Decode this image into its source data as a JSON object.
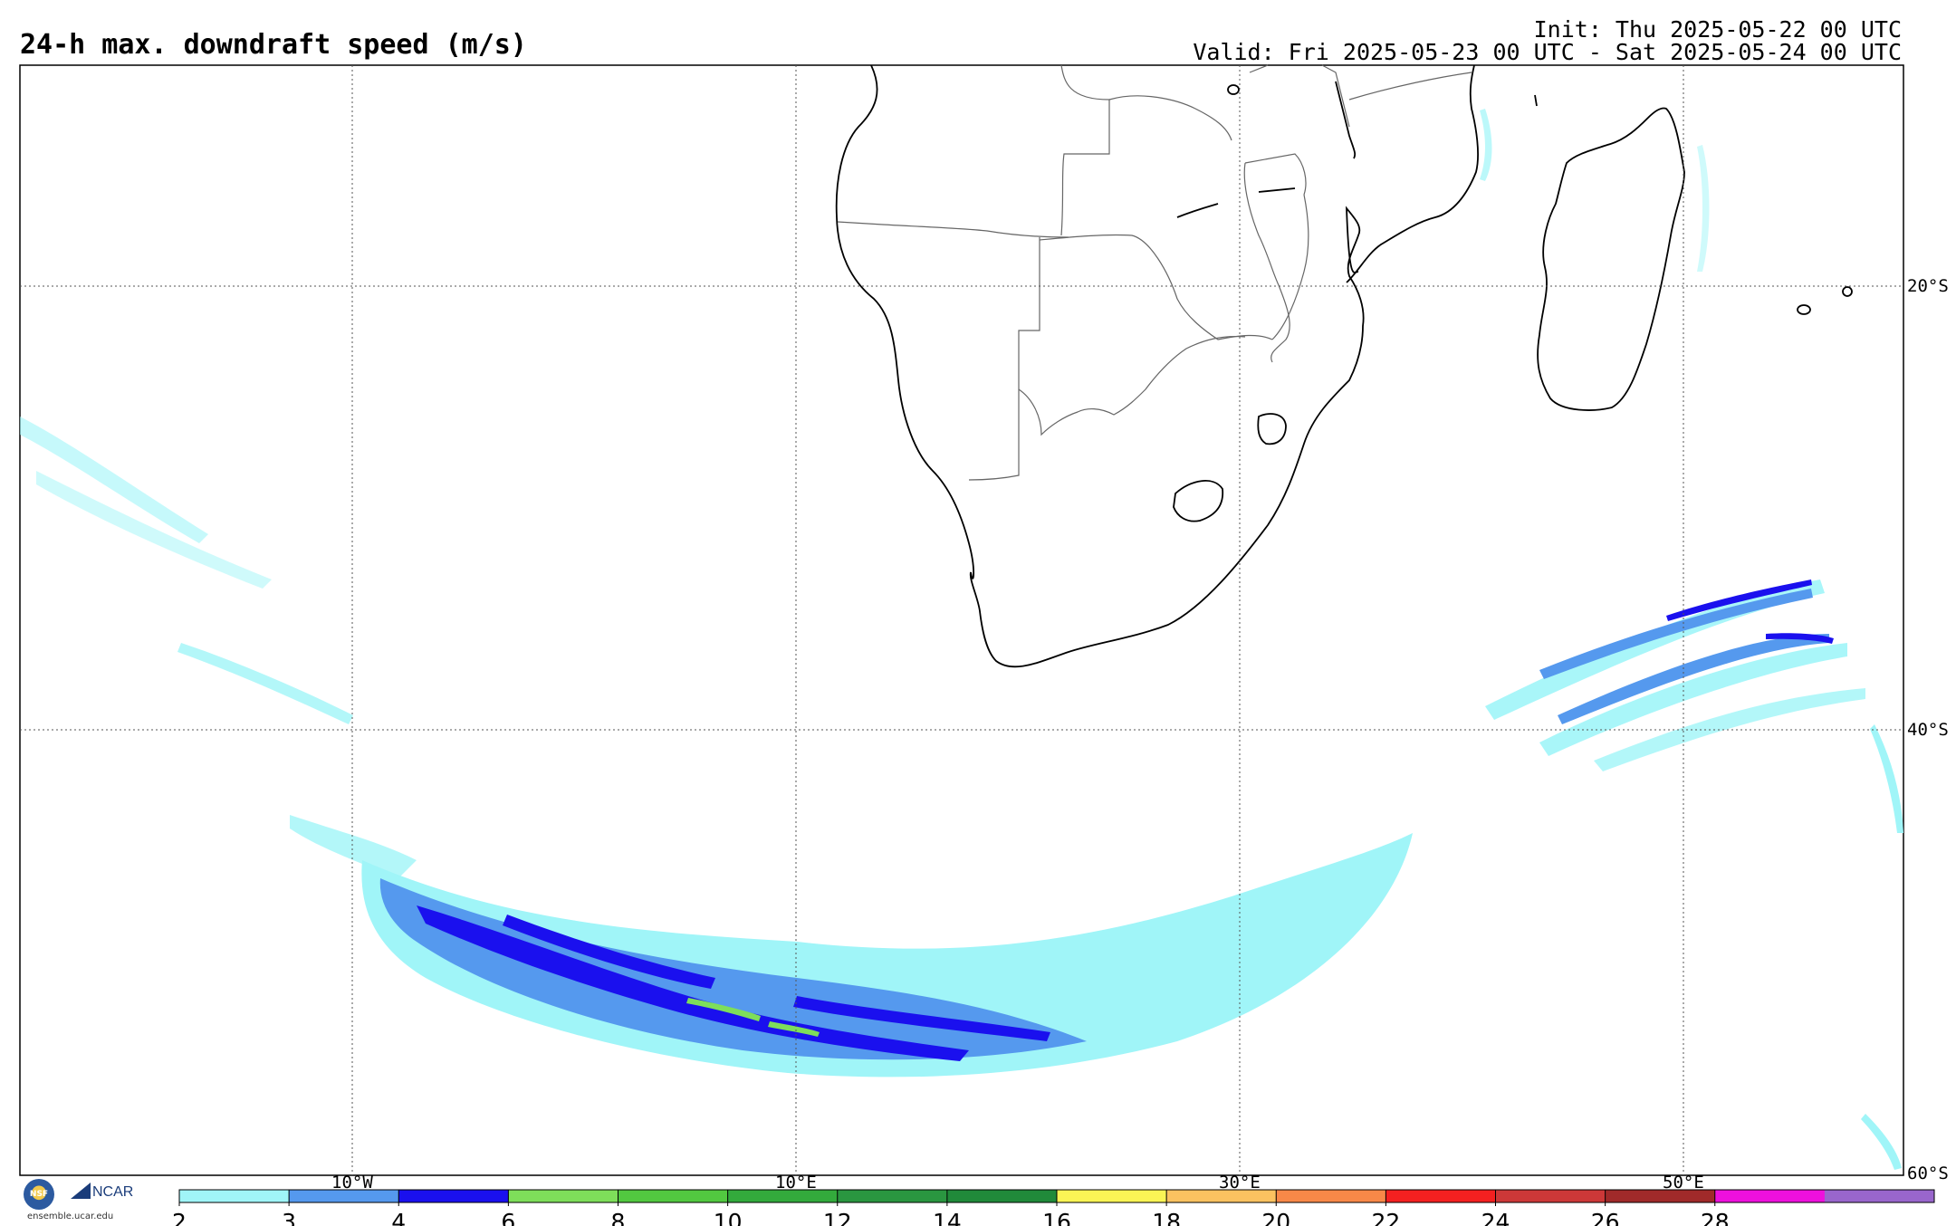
{
  "header": {
    "title": "24-h max. downdraft speed (m/s)",
    "init": "Init: Thu 2025-05-22 00 UTC",
    "valid": "Valid: Fri 2025-05-23 00 UTC - Sat 2025-05-24 00 UTC"
  },
  "map": {
    "lat_labels": [
      "20°S",
      "40°S",
      "60°S"
    ],
    "lon_labels": [
      "10°W",
      "10°E",
      "30°E",
      "50°E"
    ],
    "region": "Southern Africa and South Atlantic / Indian Ocean",
    "extent": {
      "lon": [
        -25,
        60
      ],
      "lat": [
        -60,
        -10
      ]
    }
  },
  "colorbar": {
    "ticks": [
      "2",
      "3",
      "4",
      "6",
      "8",
      "10",
      "12",
      "14",
      "16",
      "18",
      "20",
      "22",
      "24",
      "26",
      "28"
    ],
    "colors": [
      "#a0f5f8",
      "#5599ee",
      "#1a10ee",
      "#7ede5a",
      "#52c840",
      "#33aa3c",
      "#2a9640",
      "#208a3a",
      "#faf455",
      "#fbc260",
      "#f88848",
      "#f42020",
      "#cc3838",
      "#a02a2a",
      "#ee10dd",
      "#9966cc"
    ]
  },
  "logo": {
    "nsf": "NSF",
    "ncar": "NCAR",
    "url": "ensemble.ucar.edu"
  }
}
